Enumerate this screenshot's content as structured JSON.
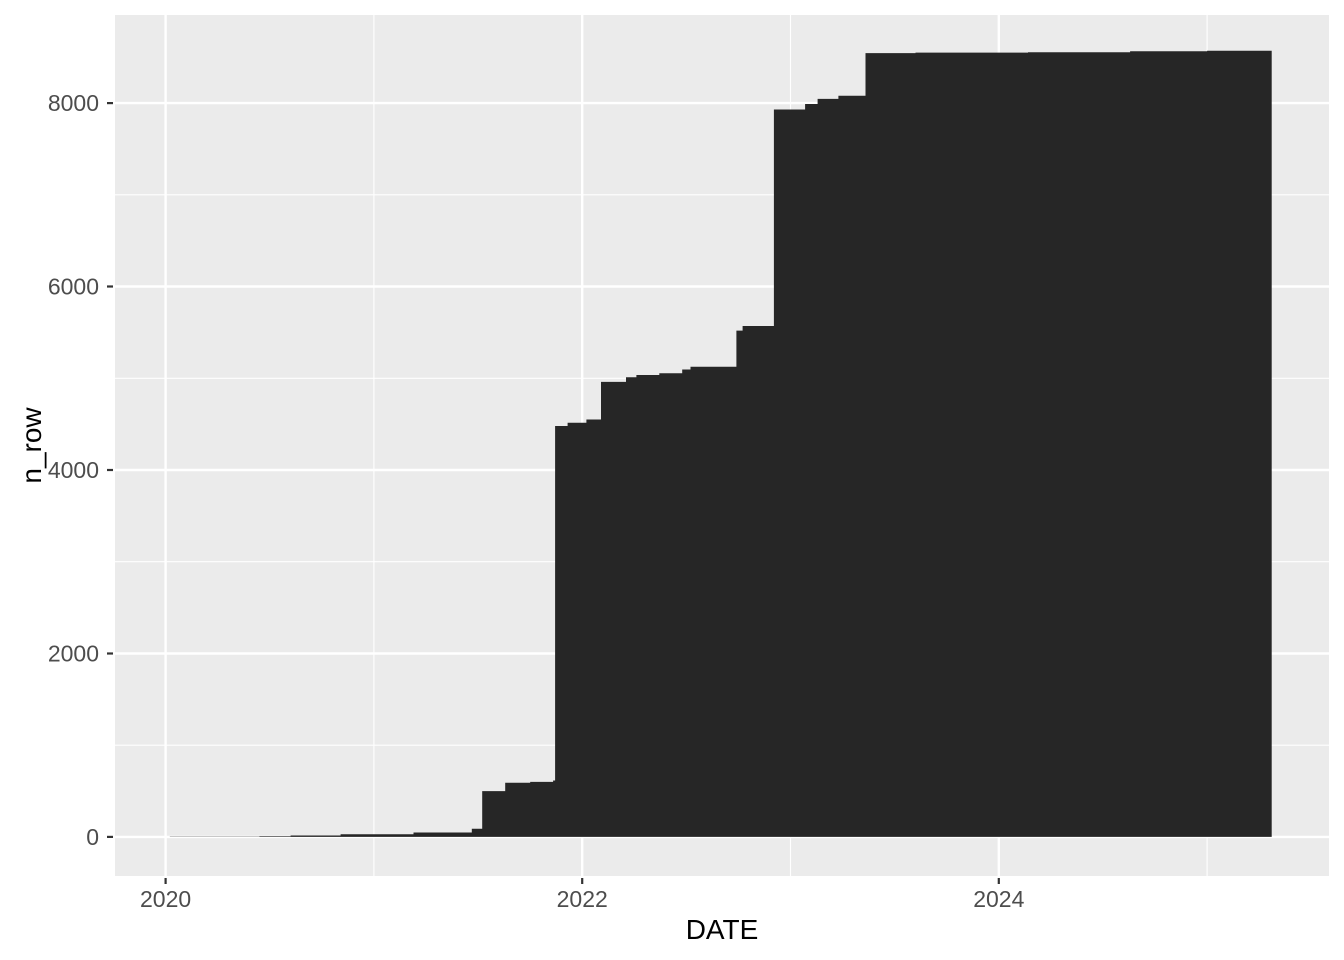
{
  "chart_data": {
    "type": "area",
    "title": "",
    "xlabel": "DATE",
    "ylabel": "n_row",
    "x_ticks_major": [
      2020,
      2022,
      2024
    ],
    "x_tick_labels": [
      "2020",
      "2022",
      "2024"
    ],
    "x_ticks_minor": [
      2021,
      2023,
      2025
    ],
    "y_ticks_major": [
      0,
      2000,
      4000,
      6000,
      8000
    ],
    "y_tick_labels": [
      "0",
      "2000",
      "4000",
      "6000",
      "8000"
    ],
    "y_ticks_minor": [
      1000,
      3000,
      5000,
      7000
    ],
    "xlim": [
      2019.757,
      2025.585
    ],
    "ylim": [
      -426,
      8960
    ],
    "baseline": 0,
    "x_end": 2025.31,
    "grid": true,
    "legend_position": "none",
    "series": [
      {
        "name": "n_row",
        "interpolation": "step-after",
        "points": [
          [
            2020.02,
            3
          ],
          [
            2020.45,
            8
          ],
          [
            2020.6,
            15
          ],
          [
            2020.84,
            30
          ],
          [
            2021.19,
            48
          ],
          [
            2021.47,
            90
          ],
          [
            2021.52,
            500
          ],
          [
            2021.63,
            590
          ],
          [
            2021.75,
            600
          ],
          [
            2021.86,
            615
          ],
          [
            2021.87,
            4480
          ],
          [
            2021.93,
            4515
          ],
          [
            2022.02,
            4550
          ],
          [
            2022.09,
            4960
          ],
          [
            2022.21,
            5010
          ],
          [
            2022.26,
            5035
          ],
          [
            2022.37,
            5055
          ],
          [
            2022.48,
            5095
          ],
          [
            2022.52,
            5125
          ],
          [
            2022.74,
            5520
          ],
          [
            2022.77,
            5570
          ],
          [
            2022.92,
            7930
          ],
          [
            2023.07,
            7990
          ],
          [
            2023.13,
            8045
          ],
          [
            2023.23,
            8080
          ],
          [
            2023.36,
            8545
          ],
          [
            2023.6,
            8550
          ],
          [
            2024.14,
            8555
          ],
          [
            2024.63,
            8565
          ],
          [
            2025.0,
            8570
          ]
        ]
      }
    ],
    "colors": {
      "fill": "#262626",
      "panel_bg": "#EBEBEB",
      "grid": "#FFFFFF",
      "tick_label": "#4D4D4D",
      "axis_title": "#000000",
      "tick_mark": "#333333",
      "background": "#FFFFFF"
    }
  }
}
